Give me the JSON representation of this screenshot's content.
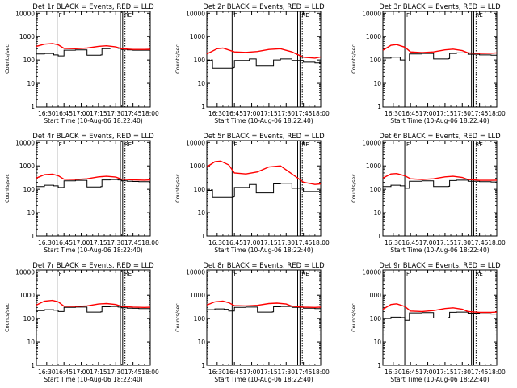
{
  "colors": {
    "events": "#000000",
    "lld": "#ff0000",
    "axes": "#000000",
    "background": "#ffffff"
  },
  "common": {
    "ylabel": "Counts/sec",
    "xlabel": "Start Time (10-Aug-06 18:22:40)",
    "x_tick_labels": [
      "16:30",
      "16:45",
      "17:00",
      "17:15",
      "17:30",
      "17:45",
      "18:00"
    ],
    "y_tick_labels": [
      "1",
      "10",
      "100",
      "1000",
      "10000"
    ],
    "marker_labels": [
      "F",
      "RE"
    ]
  },
  "chart_data": [
    {
      "type": "line",
      "title": "Det 1r BLACK = Events, RED = LLD",
      "yscale": "log",
      "ylim": [
        1,
        12000
      ],
      "xlim": [
        "16:21",
        "18:00"
      ],
      "marker_times": [
        "16:39",
        "17:34",
        "17:36",
        "17:38"
      ],
      "series": [
        {
          "name": "Events",
          "x": [
            "16:21",
            "16:28",
            "16:36",
            "16:40",
            "16:45",
            "16:55",
            "17:04",
            "17:05",
            "17:15",
            "17:17",
            "17:18",
            "17:25",
            "17:32",
            "17:35",
            "17:40",
            "17:45",
            "17:50",
            "18:00"
          ],
          "values": [
            180,
            190,
            165,
            150,
            260,
            270,
            270,
            160,
            160,
            165,
            300,
            320,
            310,
            280,
            270,
            260,
            260,
            260
          ]
        },
        {
          "name": "LLD",
          "x": [
            "16:21",
            "16:28",
            "16:35",
            "16:40",
            "16:45",
            "16:55",
            "17:05",
            "17:15",
            "17:22",
            "17:30",
            "17:35",
            "17:45",
            "17:55",
            "18:00"
          ],
          "values": [
            380,
            470,
            500,
            440,
            310,
            300,
            320,
            380,
            400,
            360,
            300,
            280,
            280,
            285
          ]
        }
      ]
    },
    {
      "type": "line",
      "title": "Det 2r BLACK = Events, RED = LLD",
      "yscale": "log",
      "ylim": [
        1,
        12000
      ],
      "xlim": [
        "16:21",
        "18:00"
      ],
      "marker_times": [
        "16:43",
        "17:40",
        "17:42",
        "17:44"
      ],
      "series": [
        {
          "name": "Events",
          "x": [
            "16:21",
            "16:25",
            "16:26",
            "16:40",
            "16:44",
            "16:45",
            "16:58",
            "17:03",
            "17:04",
            "17:18",
            "17:19",
            "17:25",
            "17:35",
            "17:45",
            "17:55",
            "18:00"
          ],
          "values": [
            95,
            100,
            45,
            45,
            48,
            95,
            110,
            110,
            55,
            55,
            100,
            110,
            95,
            80,
            75,
            80
          ]
        },
        {
          "name": "LLD",
          "x": [
            "16:21",
            "16:30",
            "16:35",
            "16:45",
            "16:55",
            "17:05",
            "17:15",
            "17:25",
            "17:35",
            "17:45",
            "17:55",
            "18:00"
          ],
          "values": [
            180,
            300,
            320,
            220,
            210,
            230,
            280,
            300,
            220,
            130,
            120,
            135
          ]
        }
      ]
    },
    {
      "type": "line",
      "title": "Det 3r BLACK = Events, RED = LLD",
      "yscale": "log",
      "ylim": [
        1,
        12000
      ],
      "xlim": [
        "16:21",
        "18:00"
      ],
      "marker_times": [
        "16:40",
        "17:38",
        "17:40",
        "17:42"
      ],
      "series": [
        {
          "name": "Events",
          "x": [
            "16:21",
            "16:28",
            "16:36",
            "16:40",
            "16:44",
            "16:55",
            "17:04",
            "17:05",
            "17:15",
            "17:18",
            "17:19",
            "17:25",
            "17:35",
            "17:45",
            "17:55",
            "18:00"
          ],
          "values": [
            120,
            130,
            100,
            90,
            180,
            190,
            190,
            110,
            110,
            115,
            190,
            200,
            175,
            165,
            160,
            160
          ]
        },
        {
          "name": "LLD",
          "x": [
            "16:21",
            "16:28",
            "16:33",
            "16:40",
            "16:45",
            "16:55",
            "17:05",
            "17:15",
            "17:22",
            "17:30",
            "17:35",
            "17:45",
            "17:55",
            "18:00"
          ],
          "values": [
            260,
            420,
            450,
            350,
            220,
            205,
            220,
            270,
            290,
            250,
            200,
            190,
            195,
            200
          ]
        }
      ]
    },
    {
      "type": "line",
      "title": "Det 4r BLACK = Events, RED = LLD",
      "yscale": "log",
      "ylim": [
        1,
        12000
      ],
      "xlim": [
        "16:21",
        "18:00"
      ],
      "marker_times": [
        "16:39",
        "17:34",
        "17:36",
        "17:38"
      ],
      "series": [
        {
          "name": "Events",
          "x": [
            "16:21",
            "16:28",
            "16:36",
            "16:40",
            "16:45",
            "16:55",
            "17:04",
            "17:05",
            "17:15",
            "17:17",
            "17:18",
            "17:25",
            "17:32",
            "17:35",
            "17:40",
            "17:45",
            "17:50",
            "18:00"
          ],
          "values": [
            130,
            150,
            140,
            120,
            230,
            240,
            240,
            125,
            125,
            130,
            250,
            260,
            250,
            230,
            220,
            215,
            210,
            210
          ]
        },
        {
          "name": "LLD",
          "x": [
            "16:21",
            "16:28",
            "16:35",
            "16:40",
            "16:45",
            "16:55",
            "17:05",
            "17:15",
            "17:22",
            "17:30",
            "17:35",
            "17:45",
            "17:55",
            "18:00"
          ],
          "values": [
            300,
            420,
            440,
            380,
            270,
            260,
            280,
            340,
            360,
            330,
            270,
            250,
            245,
            250
          ]
        }
      ]
    },
    {
      "type": "line",
      "title": "Det 5r BLACK = Events, RED = LLD",
      "yscale": "log",
      "ylim": [
        1,
        12000
      ],
      "xlim": [
        "16:21",
        "18:00"
      ],
      "marker_times": [
        "16:43",
        "17:40",
        "17:42",
        "17:44"
      ],
      "series": [
        {
          "name": "Events",
          "x": [
            "16:21",
            "16:25",
            "16:26",
            "16:40",
            "16:44",
            "16:45",
            "16:58",
            "17:03",
            "17:04",
            "17:18",
            "17:19",
            "17:25",
            "17:35",
            "17:45",
            "17:55",
            "18:00"
          ],
          "values": [
            90,
            95,
            45,
            45,
            48,
            120,
            160,
            160,
            70,
            70,
            170,
            180,
            110,
            80,
            80,
            85
          ]
        },
        {
          "name": "LLD",
          "x": [
            "16:21",
            "16:28",
            "16:33",
            "16:40",
            "16:45",
            "16:55",
            "17:05",
            "17:15",
            "17:25",
            "17:35",
            "17:45",
            "17:55",
            "18:00"
          ],
          "values": [
            900,
            1500,
            1600,
            1100,
            500,
            450,
            550,
            900,
            1000,
            450,
            200,
            160,
            170
          ]
        }
      ]
    },
    {
      "type": "line",
      "title": "Det 6r BLACK = Events, RED = LLD",
      "yscale": "log",
      "ylim": [
        1,
        12000
      ],
      "xlim": [
        "16:21",
        "18:00"
      ],
      "marker_times": [
        "16:40",
        "17:38",
        "17:40",
        "17:42"
      ],
      "series": [
        {
          "name": "Events",
          "x": [
            "16:21",
            "16:28",
            "16:36",
            "16:40",
            "16:44",
            "16:55",
            "17:04",
            "17:05",
            "17:15",
            "17:18",
            "17:19",
            "17:25",
            "17:35",
            "17:45",
            "17:55",
            "18:00"
          ],
          "values": [
            130,
            150,
            140,
            110,
            220,
            230,
            230,
            130,
            130,
            135,
            235,
            245,
            220,
            210,
            205,
            205
          ]
        },
        {
          "name": "LLD",
          "x": [
            "16:21",
            "16:28",
            "16:33",
            "16:40",
            "16:45",
            "16:55",
            "17:05",
            "17:15",
            "17:22",
            "17:30",
            "17:35",
            "17:45",
            "17:55",
            "18:00"
          ],
          "values": [
            300,
            450,
            470,
            380,
            280,
            260,
            280,
            340,
            360,
            320,
            260,
            240,
            240,
            245
          ]
        }
      ]
    },
    {
      "type": "line",
      "title": "Det 7r BLACK = Events, RED = LLD",
      "yscale": "log",
      "ylim": [
        1,
        12000
      ],
      "xlim": [
        "16:21",
        "18:00"
      ],
      "marker_times": [
        "16:39",
        "17:34",
        "17:36",
        "17:38"
      ],
      "series": [
        {
          "name": "Events",
          "x": [
            "16:21",
            "16:28",
            "16:36",
            "16:40",
            "16:45",
            "16:55",
            "17:04",
            "17:05",
            "17:15",
            "17:17",
            "17:18",
            "17:25",
            "17:32",
            "17:35",
            "17:40",
            "17:45",
            "17:50",
            "18:00"
          ],
          "values": [
            220,
            240,
            230,
            200,
            300,
            310,
            310,
            190,
            190,
            195,
            320,
            330,
            310,
            290,
            280,
            275,
            270,
            270
          ]
        },
        {
          "name": "LLD",
          "x": [
            "16:21",
            "16:28",
            "16:35",
            "16:40",
            "16:45",
            "16:55",
            "17:05",
            "17:15",
            "17:22",
            "17:30",
            "17:35",
            "17:45",
            "17:55",
            "18:00"
          ],
          "values": [
            380,
            560,
            600,
            520,
            340,
            330,
            350,
            420,
            440,
            400,
            330,
            310,
            300,
            305
          ]
        }
      ]
    },
    {
      "type": "line",
      "title": "Det 8r BLACK = Events, RED = LLD",
      "yscale": "log",
      "ylim": [
        1,
        12000
      ],
      "xlim": [
        "16:21",
        "18:00"
      ],
      "marker_times": [
        "16:43",
        "17:40",
        "17:42",
        "17:44"
      ],
      "series": [
        {
          "name": "Events",
          "x": [
            "16:21",
            "16:28",
            "16:36",
            "16:40",
            "16:44",
            "16:45",
            "16:55",
            "17:04",
            "17:05",
            "17:15",
            "17:18",
            "17:19",
            "17:25",
            "17:35",
            "17:45",
            "17:55",
            "18:00"
          ],
          "values": [
            240,
            260,
            250,
            210,
            210,
            300,
            310,
            310,
            190,
            190,
            195,
            320,
            330,
            300,
            280,
            270,
            275
          ]
        },
        {
          "name": "LLD",
          "x": [
            "16:21",
            "16:28",
            "16:35",
            "16:40",
            "16:45",
            "16:55",
            "17:05",
            "17:15",
            "17:22",
            "17:30",
            "17:35",
            "17:45",
            "17:55",
            "18:00"
          ],
          "values": [
            380,
            520,
            560,
            480,
            360,
            350,
            370,
            440,
            460,
            420,
            340,
            310,
            300,
            310
          ]
        }
      ]
    },
    {
      "type": "line",
      "title": "Det 9r BLACK = Events, RED = LLD",
      "yscale": "log",
      "ylim": [
        1,
        12000
      ],
      "xlim": [
        "16:21",
        "18:00"
      ],
      "marker_times": [
        "16:40",
        "17:38",
        "17:40",
        "17:42"
      ],
      "series": [
        {
          "name": "Events",
          "x": [
            "16:21",
            "16:28",
            "16:36",
            "16:40",
            "16:44",
            "16:55",
            "17:04",
            "17:05",
            "17:15",
            "17:18",
            "17:19",
            "17:25",
            "17:35",
            "17:45",
            "17:55",
            "18:00"
          ],
          "values": [
            100,
            115,
            110,
            85,
            175,
            180,
            180,
            105,
            105,
            110,
            185,
            190,
            170,
            160,
            155,
            155
          ]
        },
        {
          "name": "LLD",
          "x": [
            "16:21",
            "16:28",
            "16:33",
            "16:40",
            "16:45",
            "16:55",
            "17:05",
            "17:15",
            "17:22",
            "17:30",
            "17:35",
            "17:45",
            "17:55",
            "18:00"
          ],
          "values": [
            250,
            400,
            430,
            330,
            210,
            200,
            220,
            270,
            290,
            250,
            200,
            185,
            185,
            190
          ]
        }
      ]
    }
  ]
}
